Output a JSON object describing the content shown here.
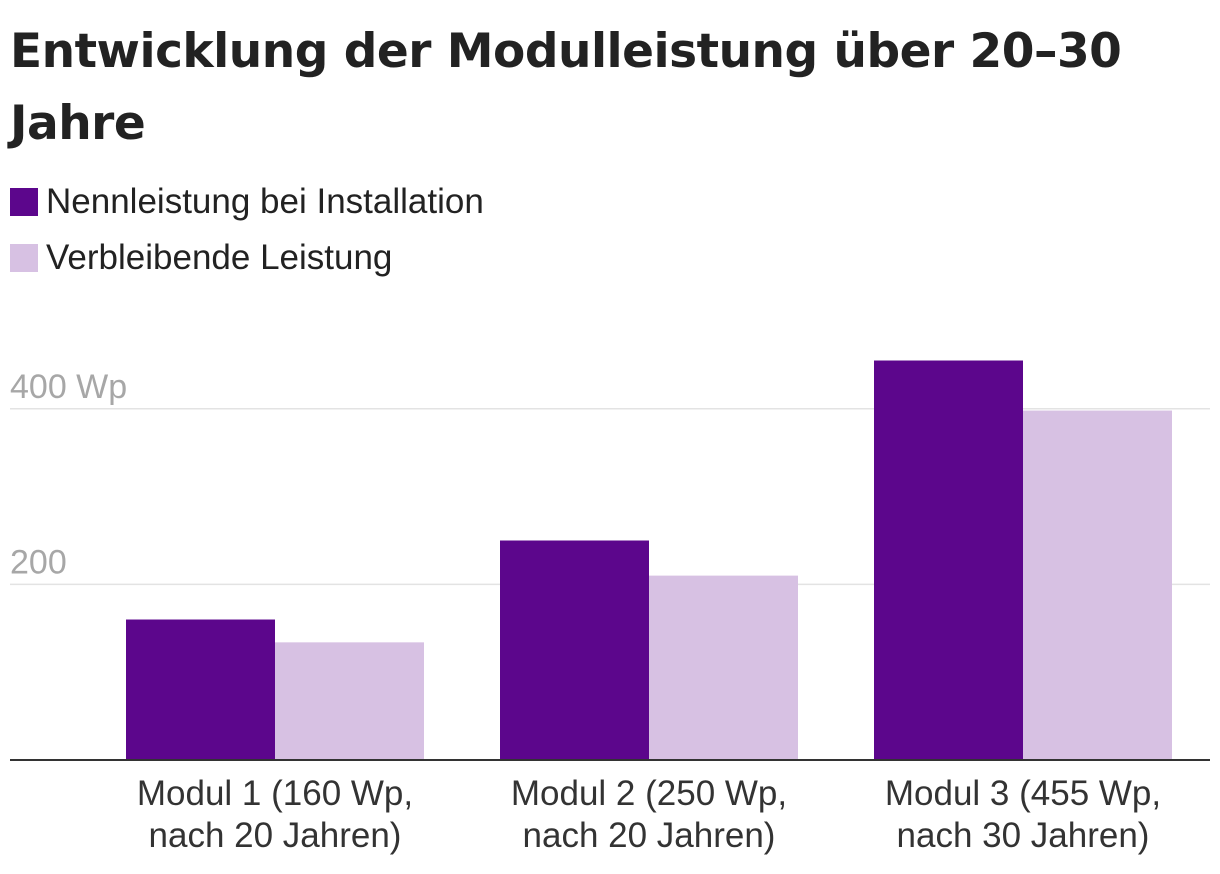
{
  "chart_data": {
    "type": "bar",
    "title": "Entwicklung der Modulleistung über 20–30 Jahre",
    "categories": [
      [
        "Modul 1 (160 Wp,",
        "nach 20 Jahren)"
      ],
      [
        "Modul 2 (250 Wp,",
        "nach 20 Jahren)"
      ],
      [
        "Modul 3 (455 Wp,",
        "nach 30 Jahren)"
      ]
    ],
    "series": [
      {
        "name": "Nennleistung bei Installation",
        "color": "#5c068c",
        "values": [
          160,
          250,
          455
        ]
      },
      {
        "name": "Verbleibende Leistung",
        "color": "#d7c1e3",
        "values": [
          134,
          210,
          398
        ]
      }
    ],
    "yticks": [
      {
        "value": 200,
        "label": "200"
      },
      {
        "value": 400,
        "label": "400 Wp"
      }
    ],
    "ylim": [
      0,
      455
    ],
    "xlabel": "",
    "ylabel": "",
    "grid": true,
    "legend_position": "top-left"
  }
}
